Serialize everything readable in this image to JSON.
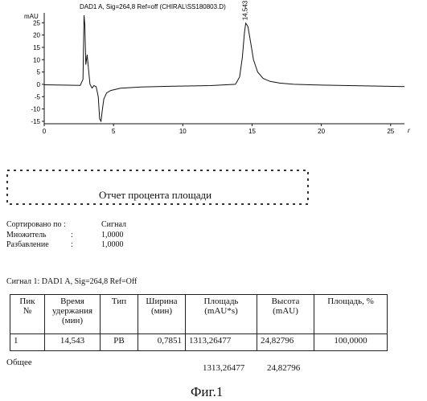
{
  "chart_data": {
    "type": "line",
    "title": "DAD1 A, Sig=264,8 Ref=off (CHIRAL\\SS180803.D)",
    "ylabel": "mAU",
    "xlabel": "",
    "x_unit_glyph": "r",
    "xlim": [
      0,
      26
    ],
    "ylim": [
      -16,
      29
    ],
    "y_ticks": [
      -15,
      -10,
      -5,
      0,
      5,
      10,
      15,
      20,
      25
    ],
    "x_ticks": [
      0,
      5,
      10,
      15,
      20,
      25
    ],
    "peak_label": "14,543",
    "series": [
      {
        "x": [
          0,
          2.6,
          2.8,
          2.87,
          2.93,
          3.0,
          3.1,
          3.2,
          3.3,
          3.45,
          3.6,
          3.75,
          3.9,
          4.0,
          4.1,
          4.2,
          4.3,
          4.5,
          4.8,
          5.5,
          7,
          9,
          12,
          13.8,
          14.1,
          14.3,
          14.45,
          14.543,
          14.7,
          14.9,
          15.1,
          15.4,
          15.8,
          16.3,
          17,
          18,
          20,
          22,
          24,
          26
        ],
        "y": [
          -0.2,
          -0.4,
          2,
          28,
          24,
          8,
          12,
          6,
          0,
          -1.5,
          -0.5,
          -1,
          -5,
          -14,
          -15,
          -10,
          -6,
          -3.5,
          -2.5,
          -1.6,
          -1.1,
          -0.8,
          -0.5,
          0,
          3,
          11,
          21,
          24.8,
          23.5,
          17,
          10,
          5,
          2.4,
          1.2,
          0.5,
          0,
          -0.3,
          -0.5,
          -0.7,
          -0.9
        ]
      }
    ]
  },
  "report": {
    "title": "Отчет процента площади",
    "sorted_label": "Сортировано по :",
    "sorted_value": "Сигнал",
    "multiplier_label": "Множитель",
    "multiplier_colon": ":",
    "multiplier_value": "1,0000",
    "dilution_label": "Разбавление",
    "dilution_colon": ":",
    "dilution_value": "1,0000",
    "signal_line": "Сигнал 1: DAD1 A, Sig=264,8  Ref=Off"
  },
  "table": {
    "headers": {
      "peak_l1": "Пик",
      "peak_l2": "№",
      "rt_l1": "Время",
      "rt_l2": "удержания",
      "rt_l3": "(мин)",
      "type": "Тип",
      "width_l1": "Ширина",
      "width_l2": "(мин)",
      "area_l1": "Площадь",
      "area_l2": "(mAU*s)",
      "height_l1": "Высота",
      "height_l2": "(mAU)",
      "area_pct": "Площадь, %"
    },
    "rows": [
      {
        "peak": "1",
        "rt": "14,543",
        "type": "PB",
        "width": "0,7851",
        "area": "1313,26477",
        "height": "24,82796",
        "area_pct": "100,0000"
      }
    ],
    "total_label": "Общее",
    "total_area": "1313,26477",
    "total_height": "24,82796"
  },
  "caption": "Фиг.1"
}
